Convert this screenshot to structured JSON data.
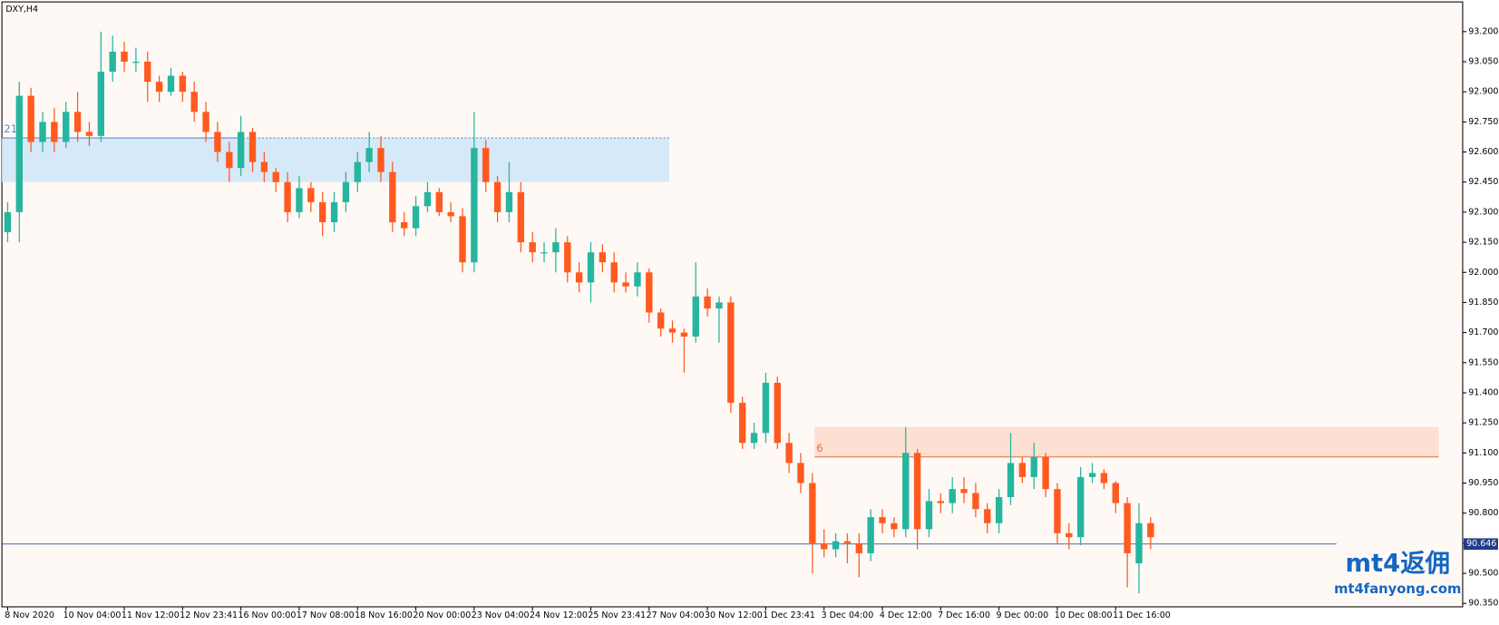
{
  "chart_data": {
    "type": "candlestick",
    "title": "DXY,H4",
    "categories": [
      "8 Nov 2020",
      null,
      null,
      null,
      null,
      "10 Nov 04:00",
      null,
      null,
      null,
      null,
      "11 Nov 12:00",
      null,
      null,
      null,
      null,
      "12 Nov 23:41",
      null,
      null,
      null,
      null,
      "16 Nov 00:00",
      null,
      null,
      null,
      null,
      "17 Nov 08:00",
      null,
      null,
      null,
      null,
      "18 Nov 16:00",
      null,
      null,
      null,
      null,
      "20 Nov 00:00",
      null,
      null,
      null,
      null,
      "23 Nov 04:00",
      null,
      null,
      null,
      null,
      "24 Nov 12:00",
      null,
      null,
      null,
      null,
      "25 Nov 23:41",
      null,
      null,
      null,
      null,
      "27 Nov 04:00",
      null,
      null,
      null,
      null,
      "30 Nov 12:00",
      null,
      null,
      null,
      null,
      "1 Dec 23:41",
      null,
      null,
      null,
      null,
      "3 Dec 04:00",
      null,
      null,
      null,
      null,
      "4 Dec 12:00",
      null,
      null,
      null,
      null,
      "7 Dec 16:00",
      null,
      null,
      null,
      null,
      "9 Dec 00:00",
      null,
      null,
      null,
      null,
      "10 Dec 08:00",
      null,
      null,
      null,
      null,
      "11 Dec 16:00",
      null,
      null,
      null
    ],
    "open": [
      92.2,
      92.3,
      92.88,
      92.65,
      92.75,
      92.65,
      92.8,
      92.7,
      92.68,
      93.0,
      93.1,
      93.05,
      93.05,
      92.95,
      92.9,
      92.98,
      92.9,
      92.8,
      92.7,
      92.6,
      92.52,
      92.7,
      92.55,
      92.5,
      92.45,
      92.3,
      92.42,
      92.35,
      92.25,
      92.35,
      92.45,
      92.55,
      92.62,
      92.5,
      92.25,
      92.22,
      92.33,
      92.4,
      92.3,
      92.28,
      92.05,
      92.62,
      92.45,
      92.3,
      92.4,
      92.15,
      92.1,
      92.1,
      92.15,
      92.0,
      91.95,
      92.1,
      92.05,
      91.95,
      91.93,
      92.0,
      91.8,
      91.72,
      91.7,
      91.68,
      91.88,
      91.82,
      91.85,
      91.35,
      91.15,
      91.2,
      91.45,
      91.15,
      91.05,
      90.95,
      90.65,
      90.62,
      90.66,
      90.65,
      90.6,
      90.78,
      90.75,
      90.72,
      91.1,
      90.72,
      90.86,
      90.85,
      90.92,
      90.9,
      90.82,
      90.75,
      90.88,
      91.05,
      90.98,
      91.08,
      90.92,
      90.7,
      90.68,
      90.98,
      91.0,
      90.95,
      90.85,
      90.55,
      90.75
    ],
    "high": [
      92.35,
      92.95,
      92.92,
      92.8,
      92.82,
      92.85,
      92.9,
      92.75,
      93.2,
      93.18,
      93.15,
      93.12,
      93.1,
      92.98,
      93.02,
      93.0,
      92.95,
      92.85,
      92.75,
      92.65,
      92.78,
      92.72,
      92.6,
      92.52,
      92.5,
      92.48,
      92.45,
      92.4,
      92.4,
      92.5,
      92.6,
      92.7,
      92.68,
      92.55,
      92.3,
      92.38,
      92.45,
      92.42,
      92.35,
      92.32,
      92.8,
      92.66,
      92.48,
      92.55,
      92.45,
      92.2,
      92.15,
      92.22,
      92.18,
      92.05,
      92.15,
      92.14,
      92.1,
      92.0,
      92.05,
      92.02,
      91.82,
      91.76,
      91.72,
      92.05,
      91.92,
      91.88,
      91.88,
      91.38,
      91.25,
      91.5,
      91.48,
      91.2,
      91.1,
      91.0,
      90.72,
      90.7,
      90.7,
      90.7,
      90.82,
      90.82,
      90.78,
      91.23,
      91.12,
      90.92,
      90.9,
      90.98,
      90.98,
      90.95,
      90.85,
      90.92,
      91.2,
      91.08,
      91.15,
      91.1,
      90.95,
      90.75,
      91.03,
      91.05,
      91.02,
      90.96,
      90.88,
      90.85,
      90.78
    ],
    "low": [
      92.15,
      92.15,
      92.6,
      92.6,
      92.6,
      92.62,
      92.65,
      92.63,
      92.65,
      92.95,
      93.0,
      93.0,
      92.85,
      92.85,
      92.88,
      92.85,
      92.75,
      92.65,
      92.55,
      92.45,
      92.48,
      92.5,
      92.45,
      92.4,
      92.25,
      92.27,
      92.3,
      92.18,
      92.2,
      92.3,
      92.4,
      92.5,
      92.45,
      92.2,
      92.18,
      92.18,
      92.3,
      92.28,
      92.25,
      92.0,
      92.0,
      92.4,
      92.25,
      92.25,
      92.1,
      92.05,
      92.05,
      92.0,
      91.95,
      91.9,
      91.85,
      92.0,
      91.9,
      91.9,
      91.88,
      91.75,
      91.68,
      91.65,
      91.5,
      91.65,
      91.78,
      91.65,
      91.3,
      91.12,
      91.12,
      91.15,
      91.12,
      91.0,
      90.9,
      90.5,
      90.58,
      90.58,
      90.55,
      90.48,
      90.56,
      90.7,
      90.68,
      90.68,
      90.62,
      90.68,
      90.8,
      90.8,
      90.85,
      90.78,
      90.7,
      90.7,
      90.84,
      90.95,
      90.92,
      90.88,
      90.65,
      90.62,
      90.64,
      90.95,
      90.92,
      90.8,
      90.43,
      90.4,
      90.62
    ],
    "close": [
      92.3,
      92.88,
      92.65,
      92.75,
      92.65,
      92.8,
      92.7,
      92.68,
      93.0,
      93.1,
      93.05,
      93.05,
      92.95,
      92.9,
      92.98,
      92.9,
      92.8,
      92.7,
      92.6,
      92.52,
      92.7,
      92.55,
      92.5,
      92.45,
      92.3,
      92.42,
      92.35,
      92.25,
      92.35,
      92.45,
      92.55,
      92.62,
      92.5,
      92.25,
      92.22,
      92.33,
      92.4,
      92.3,
      92.28,
      92.05,
      92.62,
      92.45,
      92.3,
      92.4,
      92.15,
      92.1,
      92.1,
      92.15,
      92.0,
      91.95,
      92.1,
      92.05,
      91.95,
      91.93,
      92.0,
      91.8,
      91.72,
      91.7,
      91.68,
      91.88,
      91.82,
      91.85,
      91.35,
      91.15,
      91.2,
      91.45,
      91.15,
      91.05,
      90.95,
      90.65,
      90.62,
      90.66,
      90.65,
      90.6,
      90.78,
      90.75,
      90.72,
      91.1,
      90.72,
      90.86,
      90.85,
      90.92,
      90.9,
      90.82,
      90.75,
      90.88,
      91.05,
      90.98,
      91.08,
      90.92,
      90.7,
      90.68,
      90.98,
      91.0,
      90.95,
      90.85,
      90.6,
      90.75,
      90.68
    ],
    "up_color": "#26b59e",
    "down_color": "#ff5a1f",
    "ylim": [
      90.333,
      93.348
    ],
    "yticks": [
      {
        "value": 90.35,
        "label": "90.350"
      },
      {
        "value": 90.5,
        "label": "90.500"
      },
      {
        "value": 90.65,
        "label": "90.650"
      },
      {
        "value": 90.8,
        "label": "90.800"
      },
      {
        "value": 90.95,
        "label": "90.950"
      },
      {
        "value": 91.1,
        "label": "91.100"
      },
      {
        "value": 91.25,
        "label": "91.250"
      },
      {
        "value": 91.4,
        "label": "91.400"
      },
      {
        "value": 91.55,
        "label": "91.550"
      },
      {
        "value": 91.7,
        "label": "91.700"
      },
      {
        "value": 91.85,
        "label": "91.850"
      },
      {
        "value": 92.0,
        "label": "92.000"
      },
      {
        "value": 92.15,
        "label": "92.150"
      },
      {
        "value": 92.3,
        "label": "92.300"
      },
      {
        "value": 92.45,
        "label": "92.450"
      },
      {
        "value": 92.6,
        "label": "92.600"
      },
      {
        "value": 92.75,
        "label": "92.750"
      },
      {
        "value": 92.9,
        "label": "92.900"
      },
      {
        "value": 93.05,
        "label": "93.050"
      },
      {
        "value": 93.2,
        "label": "93.200"
      }
    ],
    "zones": [
      {
        "label": "21",
        "high": 92.67,
        "low": 92.45,
        "color": "#d6e9f8",
        "line_color": "#5b8fc7"
      },
      {
        "label": "6",
        "high": 91.23,
        "low": 91.08,
        "color": "#fde0d2",
        "line_color": "#e0703a"
      }
    ],
    "current_price": 90.646,
    "current_price_color": "#1f3c88"
  },
  "watermark": {
    "brand": "mt4返佣",
    "site": "mt4fanyong.com"
  }
}
